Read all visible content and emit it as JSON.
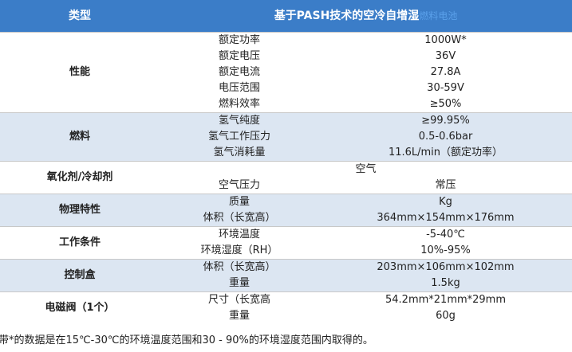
{
  "header": {
    "col1": "类型",
    "title": "基于PASH技术的空冷自增湿",
    "title_suffix": "燃料电池"
  },
  "groups": [
    {
      "label": "性能",
      "rows": [
        [
          "额定功率",
          "1000W*"
        ],
        [
          "额定电压",
          "36V"
        ],
        [
          "额定电流",
          "27.8A"
        ],
        [
          "电压范围",
          "30-59V"
        ],
        [
          "燃料效率",
          "≥50%"
        ]
      ]
    },
    {
      "label": "燃料",
      "rows": [
        [
          "氢气纯度",
          "≥99.95%"
        ],
        [
          "氢气工作压力",
          "0.5-0.6bar"
        ],
        [
          "氢气消耗量",
          "11.6L/min（额定功率）"
        ]
      ]
    },
    {
      "label": "氧化剂/冷却剂",
      "rows": [
        [
          "空气"
        ],
        [
          "空气压力",
          "常压"
        ]
      ]
    },
    {
      "label": "物理特性",
      "rows": [
        [
          "质量",
          "Kg"
        ],
        [
          "体积（长宽高）",
          "364mm×154mm×176mm"
        ]
      ]
    },
    {
      "label": "工作条件",
      "rows": [
        [
          "环境温度",
          "-5-40℃"
        ],
        [
          "环境湿度（RH）",
          "10%-95%"
        ]
      ]
    },
    {
      "label": "控制盒",
      "rows": [
        [
          "体积（长宽高）",
          "203mm×106mm×102mm"
        ],
        [
          "重量",
          "1.5kg"
        ]
      ]
    },
    {
      "label": "电磁阀（1个）",
      "rows": [
        [
          "尺寸（长宽高",
          "54.2mm*21mm*29mm"
        ],
        [
          "重量",
          "60g"
        ]
      ]
    }
  ],
  "footnote": "带*的数据是在15℃-30℃的环境温度范围和30 - 90%的环境湿度范围内取得的。"
}
